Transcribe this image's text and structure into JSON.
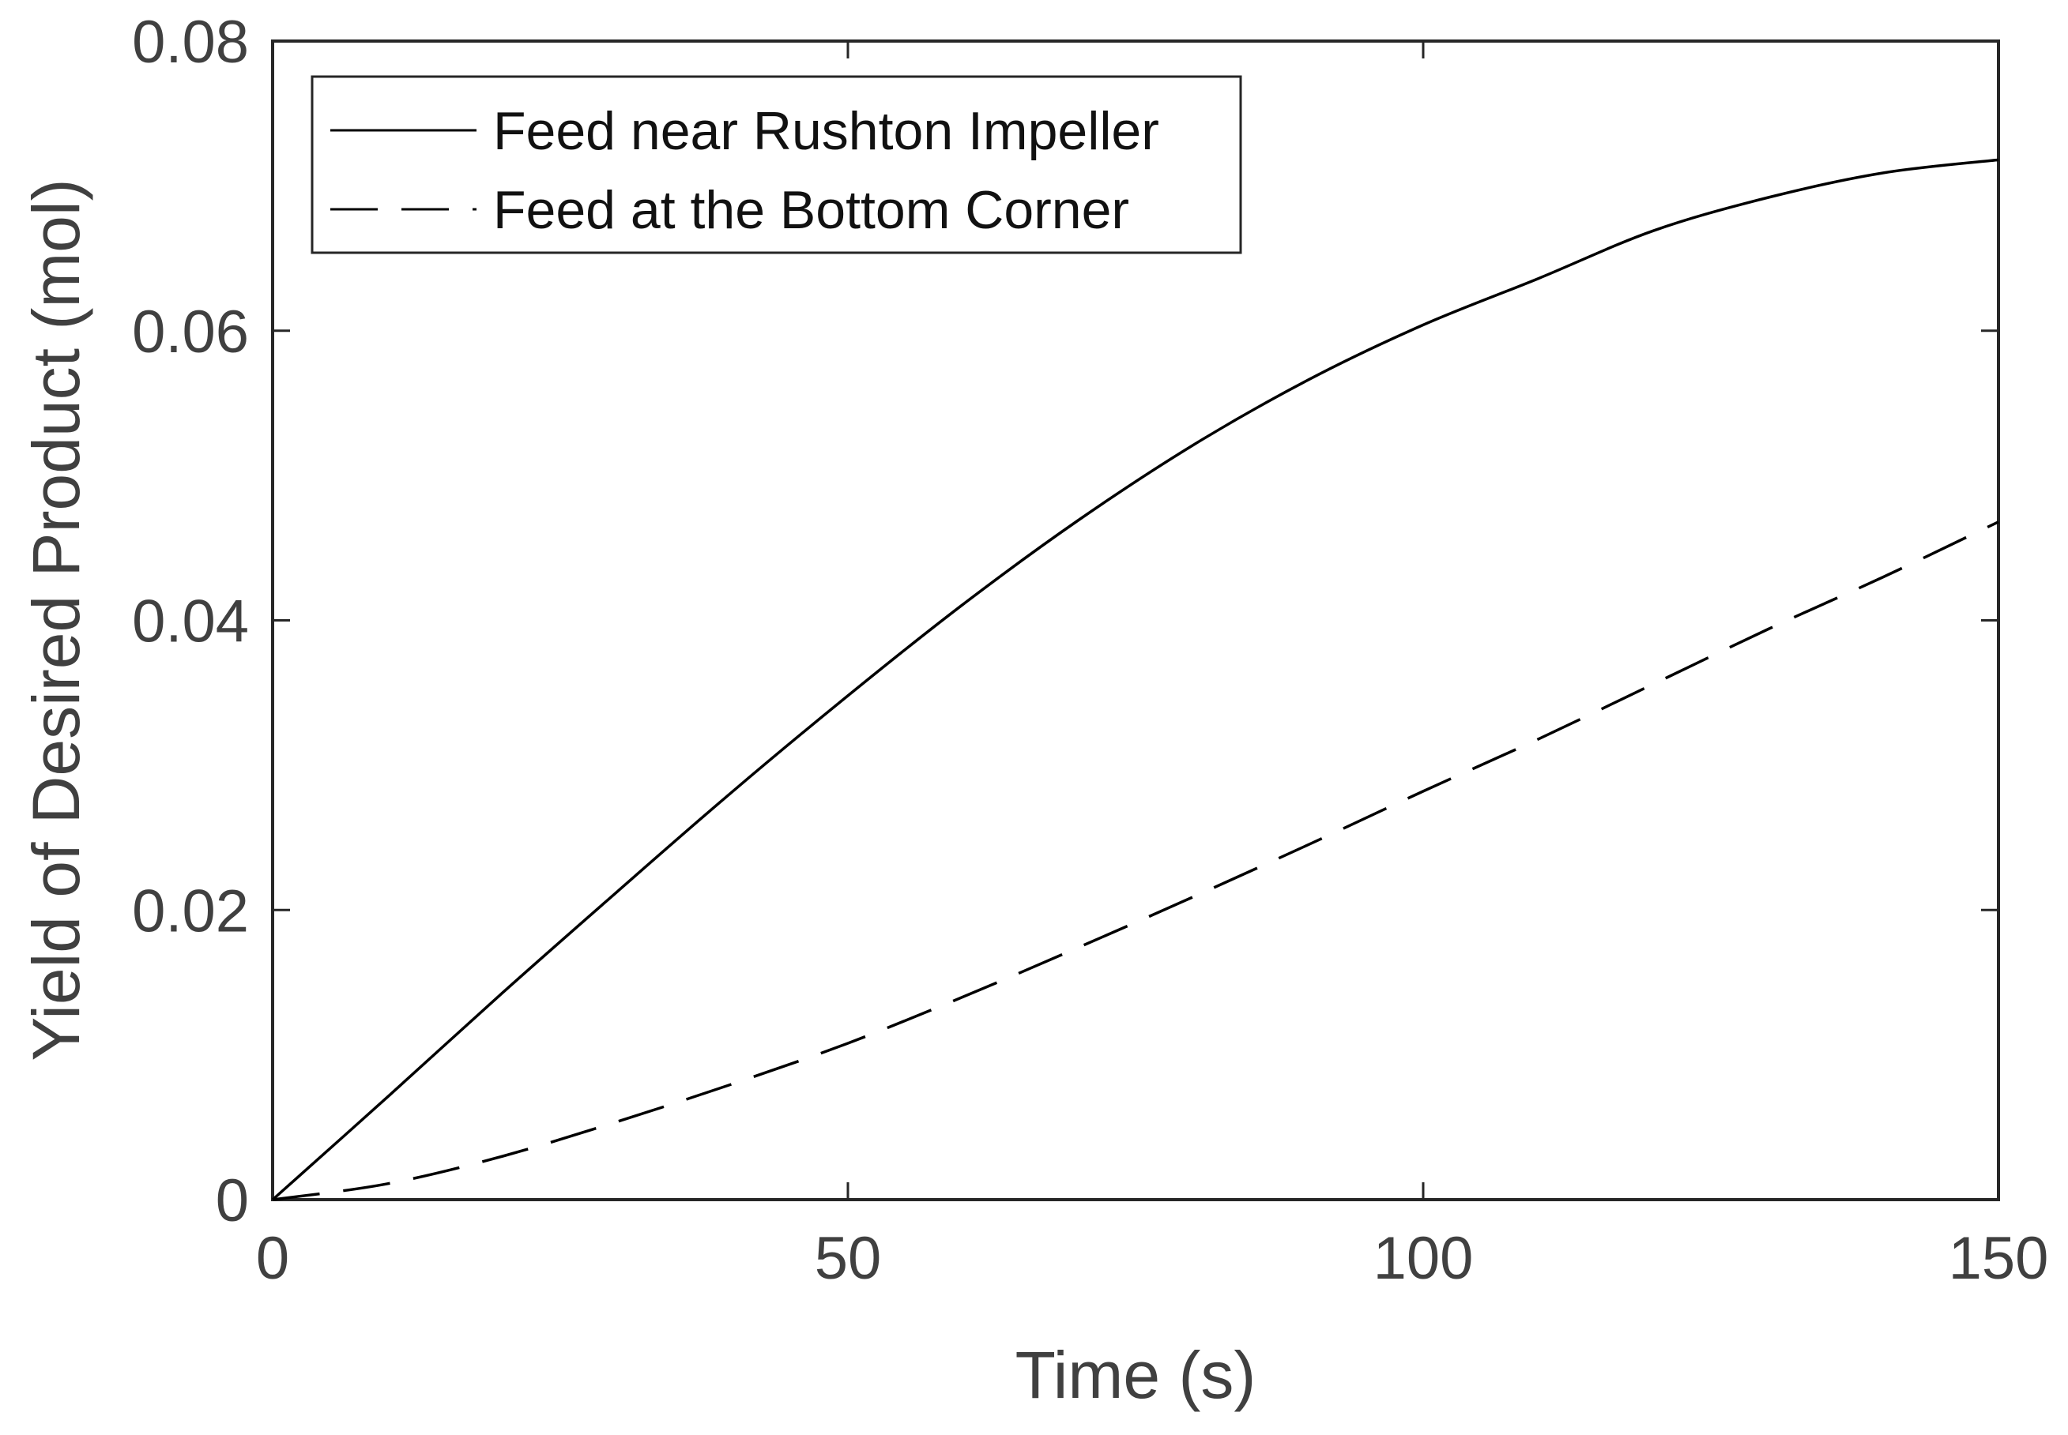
{
  "chart_data": {
    "type": "line",
    "title": "",
    "xlabel": "Time (s)",
    "ylabel": "Yield of Desired Product (mol)",
    "xlim": [
      0,
      150
    ],
    "ylim": [
      0,
      0.08
    ],
    "xticks": [
      0,
      50,
      100,
      150
    ],
    "xtick_labels": [
      "0",
      "50",
      "100",
      "150"
    ],
    "yticks": [
      0,
      0.02,
      0.04,
      0.06,
      0.08
    ],
    "ytick_labels": [
      "0",
      "0.02",
      "0.04",
      "0.06",
      "0.08"
    ],
    "grid": false,
    "legend_position": "top-left",
    "x": [
      0,
      10,
      20,
      30,
      40,
      50,
      60,
      70,
      80,
      90,
      100,
      110,
      120,
      130,
      140,
      150
    ],
    "series": [
      {
        "name": "Feed near Rushton Impeller",
        "style": "solid",
        "color": "#000000",
        "values": [
          0,
          0.0071,
          0.0143,
          0.0213,
          0.0282,
          0.0348,
          0.0411,
          0.0469,
          0.0521,
          0.0566,
          0.0604,
          0.0636,
          0.0669,
          0.0692,
          0.0709,
          0.0718
        ]
      },
      {
        "name": "Feed at the Bottom Corner",
        "style": "dashed",
        "color": "#000000",
        "values": [
          0,
          0.0011,
          0.003,
          0.0054,
          0.008,
          0.0108,
          0.014,
          0.0174,
          0.0209,
          0.0245,
          0.0282,
          0.0318,
          0.0356,
          0.0394,
          0.043,
          0.0468
        ]
      }
    ]
  }
}
